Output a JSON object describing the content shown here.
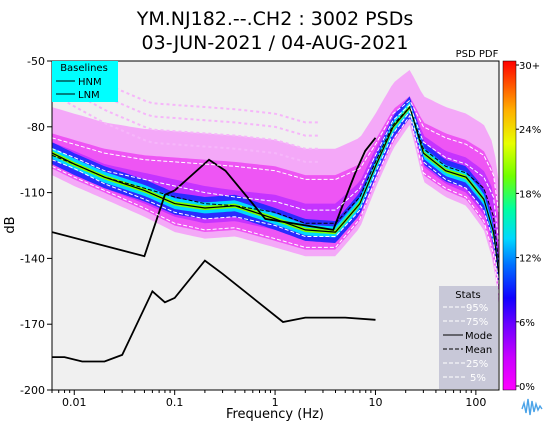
{
  "chart_data": {
    "type": "heatmap",
    "title_line1": "YM.NJ182.--.CH2 : 3002 PSDs",
    "title_line2": "03-JUN-2021 / 04-AUG-2021",
    "xlabel": "Frequency (Hz)",
    "ylabel": "dB",
    "xscale": "log",
    "xlim": [
      0.006,
      170
    ],
    "ylim": [
      -200,
      -50
    ],
    "xticks": [
      {
        "label": "0.01",
        "value": 0.01
      },
      {
        "label": "0.1",
        "value": 0.1
      },
      {
        "label": "1",
        "value": 1
      },
      {
        "label": "10",
        "value": 10
      },
      {
        "label": "100",
        "value": 100
      }
    ],
    "yticks": [
      {
        "label": "-50",
        "value": -50
      },
      {
        "label": "-80",
        "value": -80
      },
      {
        "label": "-110",
        "value": -110
      },
      {
        "label": "-140",
        "value": -140
      },
      {
        "label": "-170",
        "value": -170
      },
      {
        "label": "-200",
        "value": -200
      }
    ],
    "colorbar": {
      "title": "PSD PDF",
      "ticks": [
        "30+",
        "24%",
        "18%",
        "12%",
        "6%",
        "0%"
      ],
      "colors": [
        "#ff00ff",
        "#9d00ff",
        "#2a00ff",
        "#0060ff",
        "#00d0ff",
        "#00ff9a",
        "#8aff00",
        "#ffe600",
        "#ff8a00",
        "#ff0000"
      ]
    },
    "baselines_legend": {
      "title": "Baselines",
      "items": [
        "HNM",
        "LNM"
      ],
      "background": "#00ffff"
    },
    "stats_legend": {
      "title": "Stats",
      "items": [
        {
          "label": "95%",
          "style": "white-dash"
        },
        {
          "label": "75%",
          "style": "white-dash"
        },
        {
          "label": "Mode",
          "style": "black-solid"
        },
        {
          "label": "Mean",
          "style": "black-dash"
        },
        {
          "label": "25%",
          "style": "white-dash"
        },
        {
          "label": "5%",
          "style": "white-dash"
        }
      ]
    },
    "series": [
      {
        "name": "HNM",
        "x": [
          0.1,
          0.22,
          0.32,
          0.8,
          3.8,
          4.6,
          6.3,
          7.9,
          10
        ],
        "y": [
          -109,
          -95,
          -100,
          -122,
          -127,
          -117,
          -101,
          -91,
          -85
        ]
      },
      {
        "name": "LNM",
        "x": [
          0.006,
          0.008,
          0.012,
          0.02,
          0.03,
          0.06,
          0.08,
          0.1,
          0.2,
          0.3,
          1.2,
          2,
          5,
          10
        ],
        "y": [
          -185,
          -185,
          -187,
          -187,
          -184,
          -155,
          -160,
          -158,
          -141,
          -147,
          -169,
          -167,
          -167,
          -168
        ]
      },
      {
        "name": "HNM-low",
        "x": [
          0.006,
          0.05,
          0.08,
          0.1
        ],
        "y": [
          -128,
          -139,
          -111,
          -109
        ]
      },
      {
        "name": "Mode",
        "x": [
          0.006,
          0.01,
          0.02,
          0.05,
          0.1,
          0.2,
          0.4,
          1,
          2,
          4,
          7,
          10,
          15,
          22,
          30,
          50,
          80,
          120,
          150,
          170
        ],
        "y": [
          -92,
          -97,
          -103,
          -109,
          -115,
          -117,
          -116,
          -122,
          -127,
          -128,
          -115,
          -98,
          -80,
          -71,
          -92,
          -100,
          -103,
          -113,
          -128,
          -148
        ]
      },
      {
        "name": "Mean",
        "x": [
          0.006,
          0.01,
          0.02,
          0.05,
          0.1,
          0.2,
          0.4,
          1,
          2,
          4,
          7,
          10,
          15,
          22,
          30,
          50,
          80,
          120,
          150,
          170
        ],
        "y": [
          -93,
          -97,
          -103,
          -108,
          -112,
          -115,
          -116,
          -119,
          -124,
          -124,
          -112,
          -96,
          -79,
          -71,
          -90,
          -98,
          -101,
          -108,
          -121,
          -143
        ]
      },
      {
        "name": "95%",
        "x": [
          0.006,
          0.01,
          0.02,
          0.05,
          0.1,
          0.2,
          0.4,
          1,
          2,
          4,
          7,
          10,
          15,
          22,
          30,
          50,
          80,
          120,
          150,
          170
        ],
        "y": [
          -85,
          -88,
          -92,
          -95,
          -96,
          -97,
          -98,
          -100,
          -104,
          -104,
          -99,
          -88,
          -74,
          -68,
          -80,
          -85,
          -88,
          -93,
          -102,
          -120
        ]
      },
      {
        "name": "75%",
        "x": [
          0.006,
          0.01,
          0.02,
          0.05,
          0.1,
          0.2,
          0.4,
          1,
          2,
          4,
          7,
          10,
          15,
          22,
          30,
          50,
          80,
          120,
          150,
          170
        ],
        "y": [
          -90,
          -94,
          -100,
          -104,
          -107,
          -110,
          -112,
          -114,
          -118,
          -118,
          -108,
          -93,
          -77,
          -70,
          -87,
          -94,
          -97,
          -103,
          -112,
          -134
        ]
      },
      {
        "name": "25%",
        "x": [
          0.006,
          0.01,
          0.02,
          0.05,
          0.1,
          0.2,
          0.4,
          1,
          2,
          4,
          7,
          10,
          15,
          22,
          30,
          50,
          80,
          120,
          150,
          170
        ],
        "y": [
          -95,
          -99,
          -106,
          -113,
          -119,
          -122,
          -121,
          -125,
          -130,
          -130,
          -118,
          -101,
          -83,
          -73,
          -96,
          -104,
          -108,
          -118,
          -132,
          -153
        ]
      },
      {
        "name": "5%",
        "x": [
          0.006,
          0.01,
          0.02,
          0.05,
          0.1,
          0.2,
          0.4,
          1,
          2,
          4,
          7,
          10,
          15,
          22,
          30,
          50,
          80,
          120,
          150,
          170
        ],
        "y": [
          -98,
          -103,
          -109,
          -117,
          -124,
          -127,
          -126,
          -131,
          -135,
          -135,
          -122,
          -104,
          -86,
          -75,
          -101,
          -108,
          -112,
          -123,
          -138,
          -158
        ]
      }
    ]
  }
}
